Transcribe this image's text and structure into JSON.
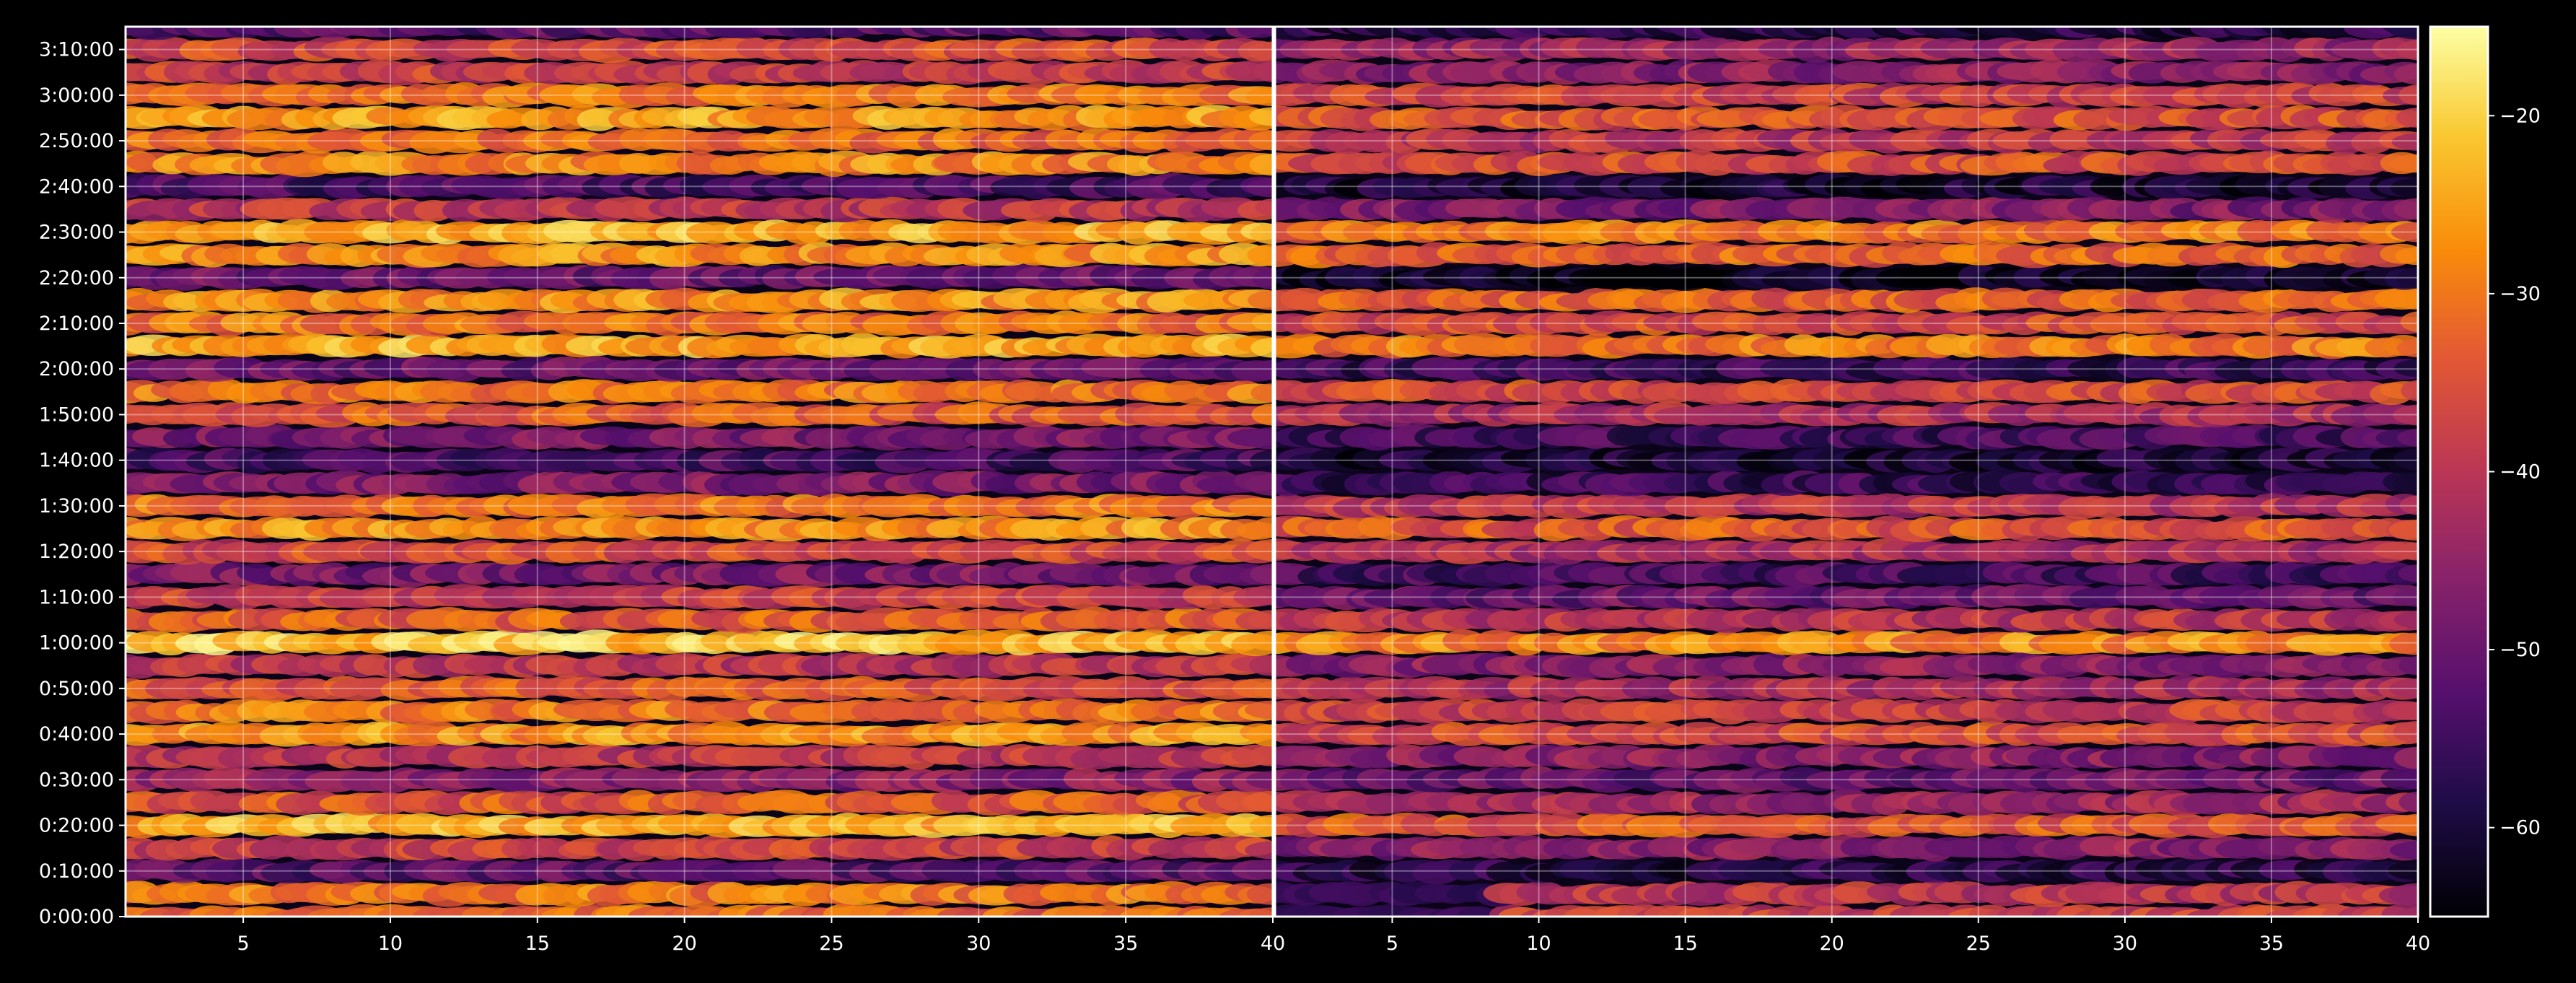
{
  "chart_data": {
    "type": "heatmap",
    "background": "#000000",
    "colormap": "inferno",
    "panels": [
      {
        "name": "left",
        "xlim": [
          1,
          40
        ],
        "ylim_seconds": [
          0,
          11700
        ]
      },
      {
        "name": "right",
        "xlim": [
          1,
          40
        ],
        "ylim_seconds": [
          0,
          11700
        ]
      }
    ],
    "x_ticks": [
      {
        "value": 5,
        "label": "5"
      },
      {
        "value": 10,
        "label": "10"
      },
      {
        "value": 15,
        "label": "15"
      },
      {
        "value": 20,
        "label": "20"
      },
      {
        "value": 25,
        "label": "25"
      },
      {
        "value": 30,
        "label": "30"
      },
      {
        "value": 35,
        "label": "35"
      },
      {
        "value": 40,
        "label": "40"
      }
    ],
    "y_ticks": [
      {
        "value": 0,
        "label": "0:00:00"
      },
      {
        "value": 600,
        "label": "0:10:00"
      },
      {
        "value": 1200,
        "label": "0:20:00"
      },
      {
        "value": 1800,
        "label": "0:30:00"
      },
      {
        "value": 2400,
        "label": "0:40:00"
      },
      {
        "value": 3000,
        "label": "0:50:00"
      },
      {
        "value": 3600,
        "label": "1:00:00"
      },
      {
        "value": 4200,
        "label": "1:10:00"
      },
      {
        "value": 4800,
        "label": "1:20:00"
      },
      {
        "value": 5400,
        "label": "1:30:00"
      },
      {
        "value": 6000,
        "label": "1:40:00"
      },
      {
        "value": 6600,
        "label": "1:50:00"
      },
      {
        "value": 7200,
        "label": "2:00:00"
      },
      {
        "value": 7800,
        "label": "2:10:00"
      },
      {
        "value": 8400,
        "label": "2:20:00"
      },
      {
        "value": 9000,
        "label": "2:30:00"
      },
      {
        "value": 9600,
        "label": "2:40:00"
      },
      {
        "value": 10200,
        "label": "2:50:00"
      },
      {
        "value": 10800,
        "label": "3:00:00"
      },
      {
        "value": 11400,
        "label": "3:10:00"
      }
    ],
    "colorbar": {
      "range": [
        -65,
        -15
      ],
      "ticks": [
        {
          "value": -20,
          "label": "−20"
        },
        {
          "value": -30,
          "label": "−30"
        },
        {
          "value": -40,
          "label": "−40"
        },
        {
          "value": -50,
          "label": "−50"
        },
        {
          "value": -60,
          "label": "−60"
        }
      ]
    },
    "grid": true,
    "row_step_seconds": 300,
    "rows": [
      {
        "t": 0,
        "left": -32,
        "right": -38,
        "right_low_until": 9
      },
      {
        "t": 300,
        "left": -30,
        "right": -40,
        "right_low_until": 9
      },
      {
        "t": 600,
        "left": -52,
        "right": -58
      },
      {
        "t": 900,
        "left": -38,
        "right": -46
      },
      {
        "t": 1200,
        "left": -24,
        "right": -34
      },
      {
        "t": 1500,
        "left": -34,
        "right": -44
      },
      {
        "t": 1800,
        "left": -46,
        "right": -50
      },
      {
        "t": 2100,
        "left": -40,
        "right": -46
      },
      {
        "t": 2400,
        "left": -27,
        "right": -36
      },
      {
        "t": 2700,
        "left": -30,
        "right": -38
      },
      {
        "t": 3000,
        "left": -34,
        "right": -42
      },
      {
        "t": 3300,
        "left": -40,
        "right": -46
      },
      {
        "t": 3600,
        "left": -22,
        "right": -28
      },
      {
        "t": 3900,
        "left": -33,
        "right": -40
      },
      {
        "t": 4200,
        "left": -38,
        "right": -50
      },
      {
        "t": 4500,
        "left": -48,
        "right": -54
      },
      {
        "t": 4800,
        "left": -36,
        "right": -42
      },
      {
        "t": 5100,
        "left": -27,
        "right": -34
      },
      {
        "t": 5400,
        "left": -30,
        "right": -40
      },
      {
        "t": 5700,
        "left": -48,
        "right": -56
      },
      {
        "t": 6000,
        "left": -54,
        "right": -60
      },
      {
        "t": 6300,
        "left": -48,
        "right": -55
      },
      {
        "t": 6600,
        "left": -34,
        "right": -42
      },
      {
        "t": 6900,
        "left": -30,
        "right": -36
      },
      {
        "t": 7200,
        "left": -50,
        "right": -56
      },
      {
        "t": 7500,
        "left": -24,
        "right": -30
      },
      {
        "t": 7800,
        "left": -30,
        "right": -36
      },
      {
        "t": 8100,
        "left": -27,
        "right": -33
      },
      {
        "t": 8400,
        "left": -50,
        "right": -62,
        "right_low_until": 40
      },
      {
        "t": 8700,
        "left": -27,
        "right": -32
      },
      {
        "t": 9000,
        "left": -24,
        "right": -30
      },
      {
        "t": 9300,
        "left": -40,
        "right": -48
      },
      {
        "t": 9600,
        "left": -54,
        "right": -60
      },
      {
        "t": 9900,
        "left": -28,
        "right": -36
      },
      {
        "t": 10200,
        "left": -32,
        "right": -40
      },
      {
        "t": 10500,
        "left": -26,
        "right": -34
      },
      {
        "t": 10800,
        "left": -30,
        "right": -38
      },
      {
        "t": 11100,
        "left": -38,
        "right": -46
      },
      {
        "t": 11400,
        "left": -36,
        "right": -44
      },
      {
        "t": 11700,
        "left": -52,
        "right": -58
      }
    ]
  }
}
